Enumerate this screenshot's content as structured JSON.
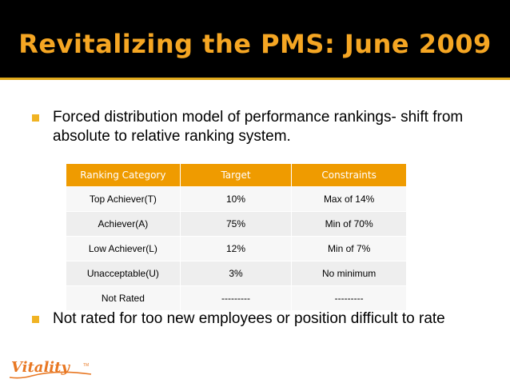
{
  "slide": {
    "title": "Revitalizing the PMS: June 2009",
    "bullets": [
      "Forced distribution model of performance rankings-  shift from absolute to relative ranking system.",
      "Not rated for too new employees or position difficult to rate"
    ]
  },
  "table": {
    "headers": [
      "Ranking Category",
      "Target",
      "Constraints"
    ],
    "rows": [
      [
        "Top Achiever(T)",
        "10%",
        "Max of 14%"
      ],
      [
        "Achiever(A)",
        "75%",
        "Min of 70%"
      ],
      [
        "Low Achiever(L)",
        "12%",
        "Min of 7%"
      ],
      [
        "Unacceptable(U)",
        "3%",
        "No minimum"
      ],
      [
        "Not Rated",
        "---------",
        "---------"
      ]
    ]
  },
  "logo": {
    "text": "Vitality",
    "tm": "TM"
  },
  "colors": {
    "title": "#f5a623",
    "bullet": "#f0b323",
    "header": "#ef9b00",
    "logo": "#e87722"
  }
}
